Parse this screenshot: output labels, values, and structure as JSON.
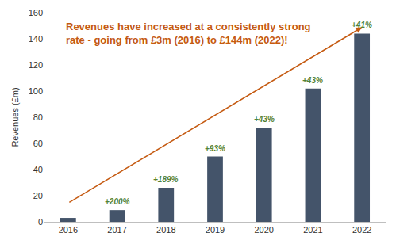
{
  "chart_data": {
    "type": "bar",
    "title": "Revenues have increased at a consistently strong\nrate - going from £3m (2016) to £144m (2022)!",
    "y_label": "Revenues (£m)",
    "categories": [
      "2016",
      "2017",
      "2018",
      "2019",
      "2020",
      "2021",
      "2022"
    ],
    "values": [
      3,
      9,
      26,
      50,
      72,
      102,
      144
    ],
    "color": "#44546a",
    "ylim": [
      0,
      160
    ],
    "yticks": [
      0,
      20,
      40,
      60,
      80,
      100,
      120,
      140,
      160
    ],
    "grid": false,
    "annotations": [
      {
        "x": "2017",
        "text": "+200%"
      },
      {
        "x": "2018",
        "text": "+189%"
      },
      {
        "x": "2019",
        "text": "+93%"
      },
      {
        "x": "2020",
        "text": "+43%"
      },
      {
        "x": "2021",
        "text": "+43%"
      },
      {
        "x": "2022",
        "text": "+41%"
      }
    ]
  }
}
